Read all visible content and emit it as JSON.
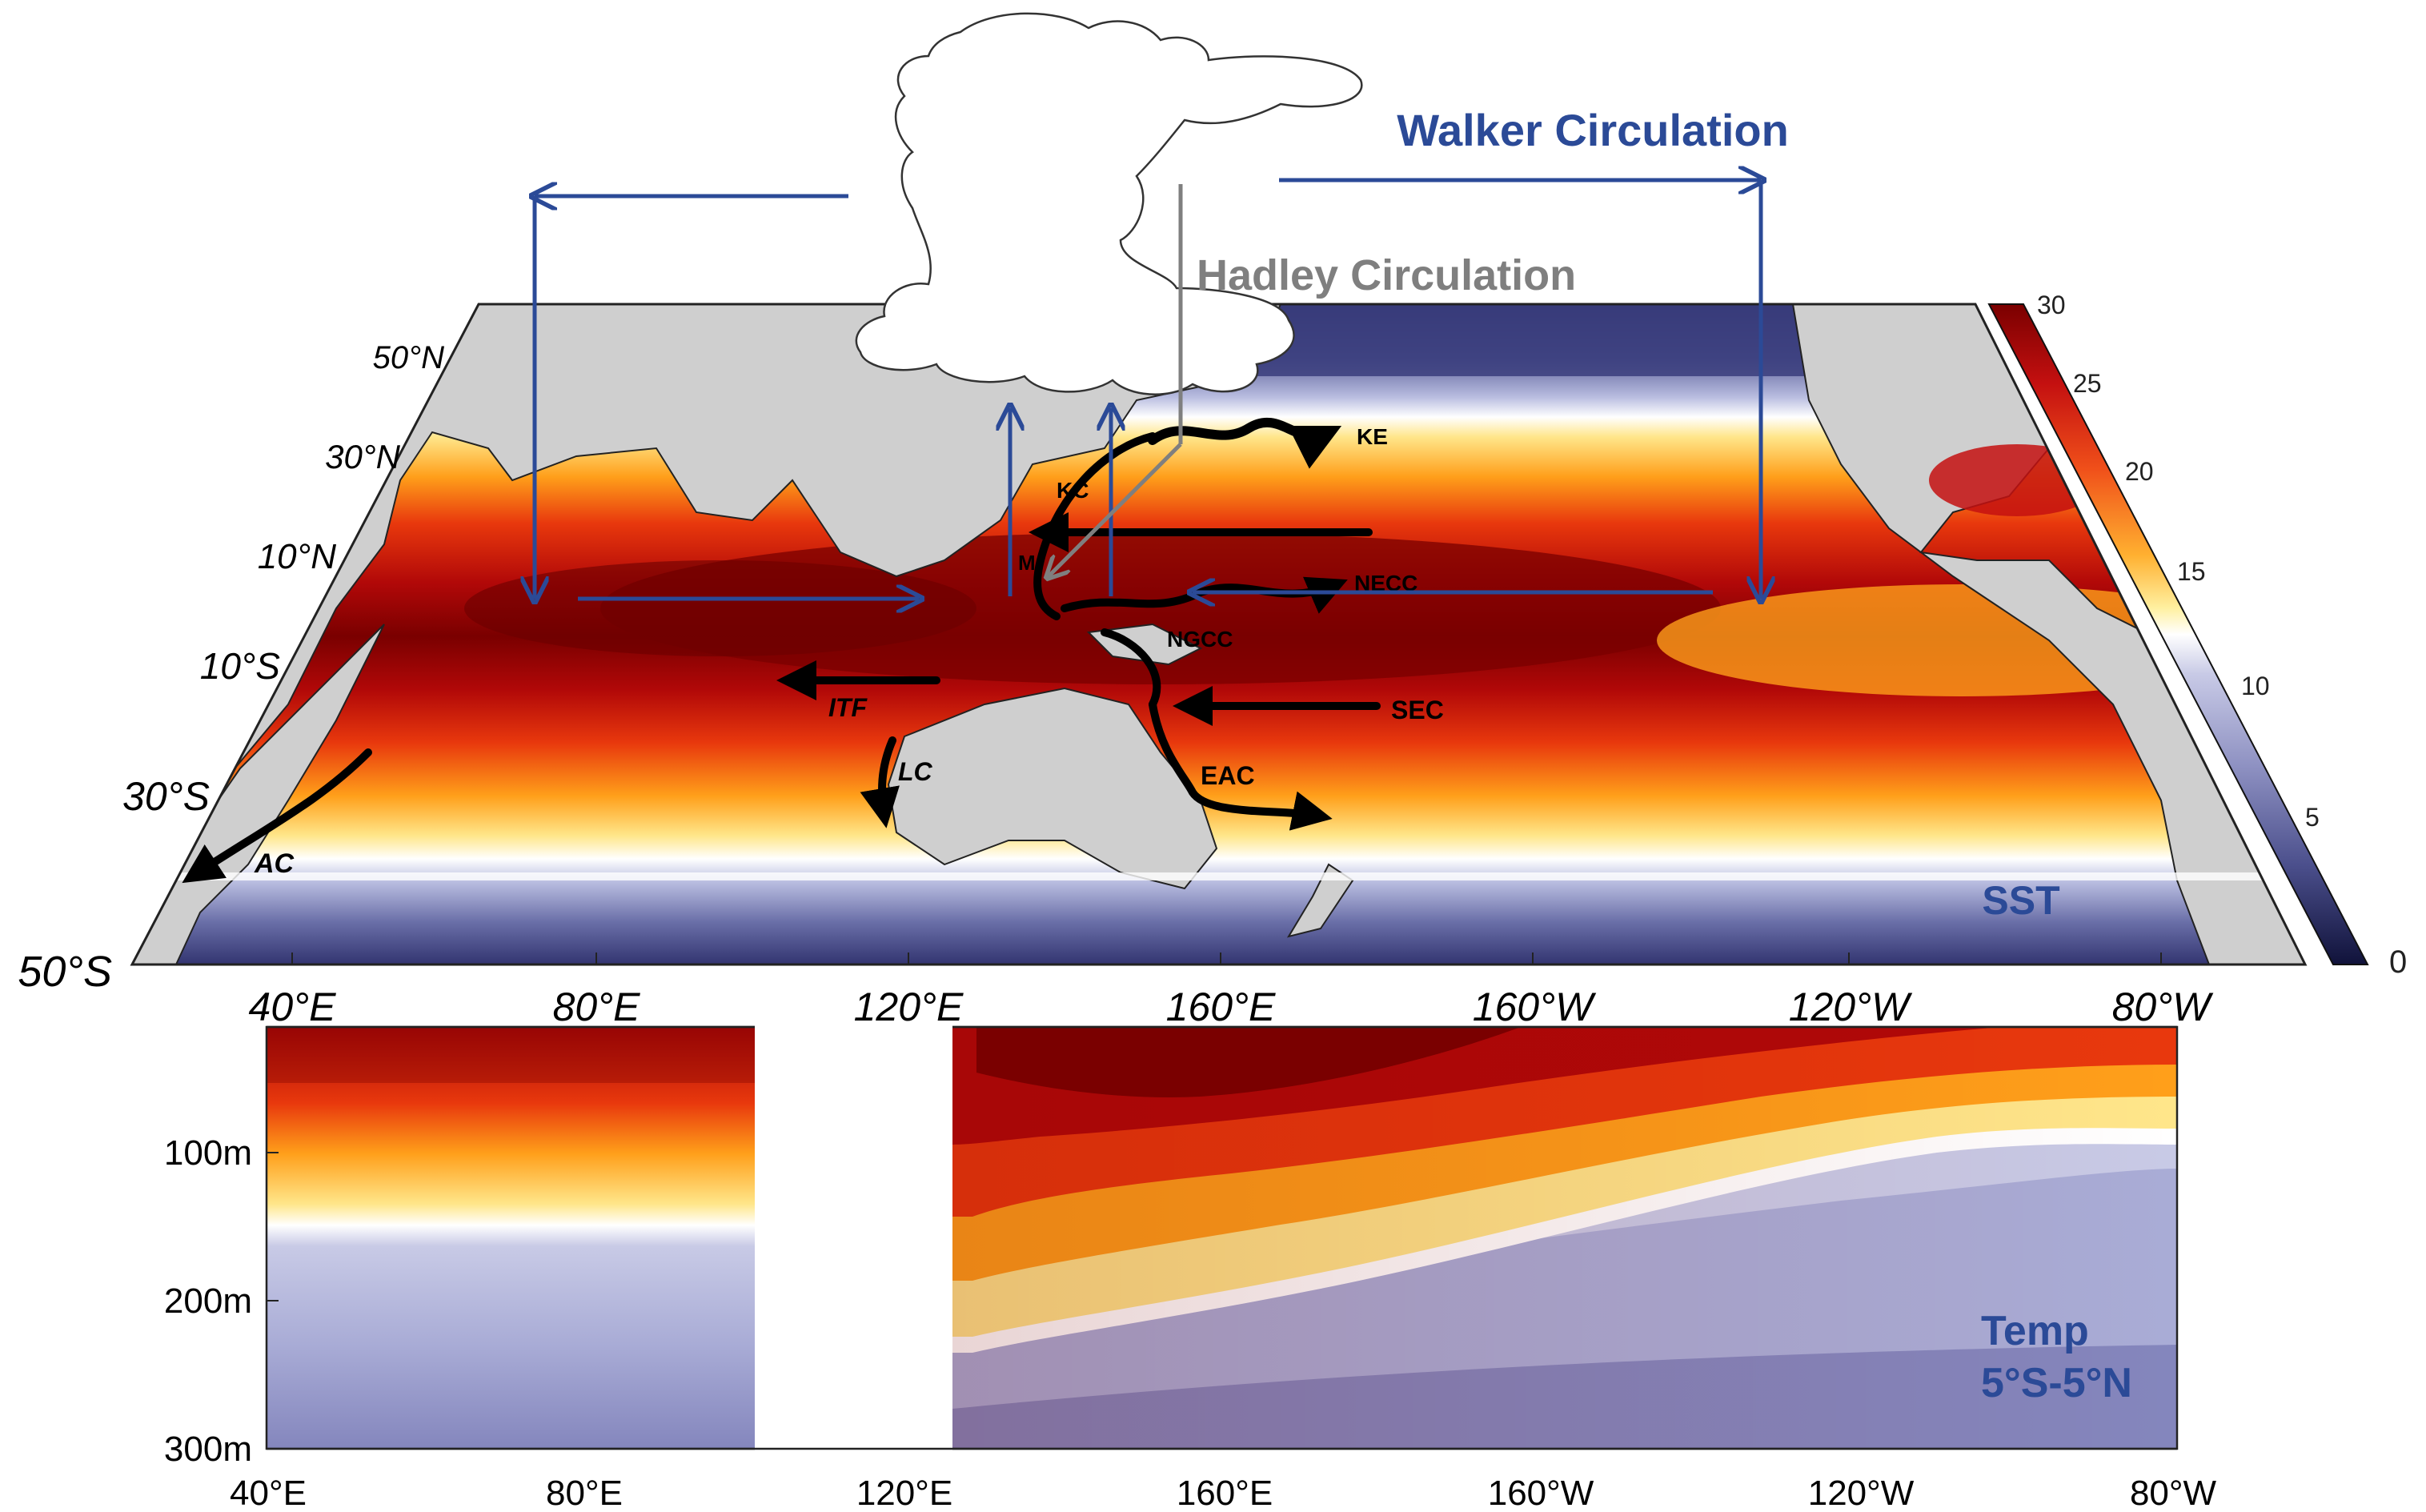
{
  "figure": {
    "walker_label": "Walker Circulation",
    "hadley_label": "Hadley Circulation",
    "map_panel_label": "SST",
    "section_panel_label": [
      "Temp",
      "5°S-5°N"
    ]
  },
  "map": {
    "lat_labels": [
      "50°N",
      "30°N",
      "10°N",
      "10°S",
      "30°S",
      "50°S"
    ],
    "lon_labels": [
      "40°E",
      "80°E",
      "120°E",
      "160°E",
      "160°W",
      "120°W",
      "80°W"
    ],
    "currents": [
      "KE",
      "KC",
      "NECC",
      "NGCC",
      "ITF",
      "SEC",
      "LC",
      "EAC",
      "AC",
      "M"
    ]
  },
  "colorbar": {
    "ticks": [
      "30",
      "25",
      "20",
      "15",
      "10",
      "5",
      "0"
    ]
  },
  "section": {
    "depth_labels": [
      "100m",
      "200m",
      "300m"
    ],
    "lon_labels": [
      "40°E",
      "80°E",
      "120°E",
      "160°E",
      "160°W",
      "120°W",
      "80°W"
    ]
  },
  "colors": {
    "walker_blue": "#2b4a97",
    "hadley_gray": "#7f7f7f",
    "land": "#cfcfcf",
    "warm_max": "#7a0000",
    "cold_min": "#10123a"
  }
}
